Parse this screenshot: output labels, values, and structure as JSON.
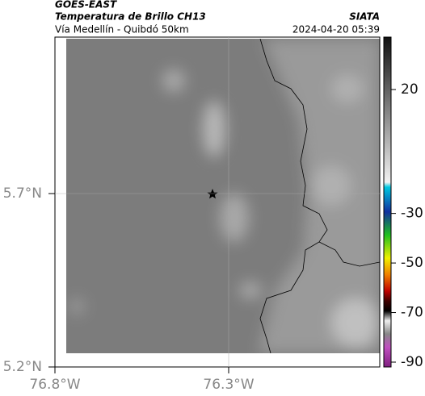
{
  "header": {
    "satellite": "GOES-EAST",
    "title": "Temperatura de Brillo CH13",
    "source": "SIATA",
    "route": "Vía Medellín - Quibdó 50km",
    "timestamp": "2024-04-20 05:39"
  },
  "map": {
    "lat_ticks": [
      {
        "value": 5.7,
        "label": "5.7°N"
      },
      {
        "value": 5.2,
        "label": "5.2°N"
      }
    ],
    "lon_ticks": [
      {
        "value": -76.8,
        "label": "76.8°W"
      },
      {
        "value": -76.3,
        "label": "76.3°W"
      }
    ]
  },
  "colorbar": {
    "ticks": [
      20,
      -30,
      -50,
      -70,
      -90
    ]
  }
}
